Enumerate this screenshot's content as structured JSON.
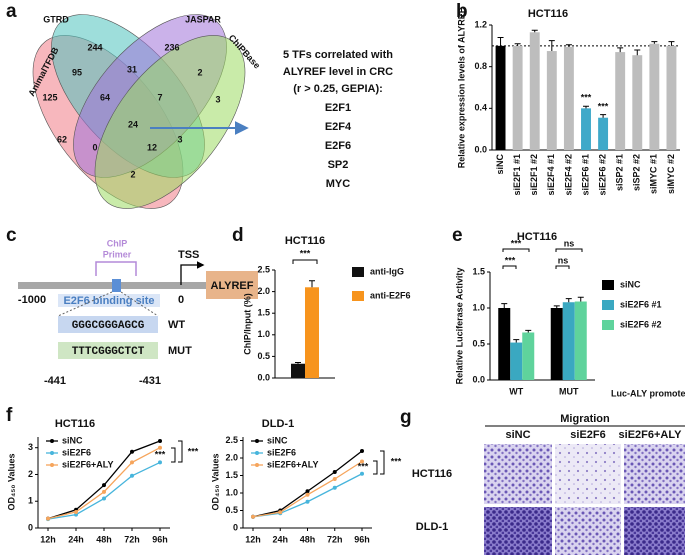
{
  "panel_labels": [
    "a",
    "b",
    "c",
    "d",
    "e",
    "f",
    "g"
  ],
  "venn": {
    "sets": [
      "AnimalTFDB",
      "GTRD",
      "JASPAR",
      "ChIPBase"
    ],
    "regions": [
      125,
      244,
      236,
      3,
      95,
      31,
      2,
      64,
      7,
      62,
      24,
      3,
      0,
      12,
      2
    ]
  },
  "tf_note": {
    "lines": [
      "5 TFs correlated with",
      "ALYREF level in CRC",
      "(r > 0.25, GEPIA):"
    ],
    "tfs": [
      "E2F1",
      "E2F4",
      "E2F6",
      "SP2",
      "MYC"
    ]
  },
  "promoter": {
    "primer": [
      "ChIP",
      "Primer"
    ],
    "tss": "TSS",
    "gene": "ALYREF",
    "start": "-1000",
    "zero": "0",
    "site": "E2F6 binding site",
    "wt_seq": "GGGCGGGAGCG",
    "wt": "WT",
    "mut_seq": "TTTCGGGCTCT",
    "mut": "MUT",
    "from": "-441",
    "to": "-431"
  },
  "chart_data": [
    {
      "type": "bar",
      "title": "HCT116",
      "ylabel": "Relative expression levels of ALYREF",
      "categories": [
        "siNC",
        "siE2F1 #1",
        "siE2F1 #2",
        "siE2F4 #1",
        "siE2F4 #2",
        "siE2F6 #1",
        "siE2F6 #2",
        "siSP2 #1",
        "siSP2 #2",
        "siMYC #1",
        "siMYC #2"
      ],
      "values": [
        1.0,
        1.0,
        1.13,
        0.95,
        0.99,
        0.4,
        0.31,
        0.94,
        0.91,
        1.02,
        1.0
      ],
      "errors": [
        0.08,
        0.02,
        0.02,
        0.1,
        0.02,
        0.02,
        0.03,
        0.04,
        0.05,
        0.02,
        0.04
      ],
      "colors": [
        "#000000",
        "#bdbdbd",
        "#bdbdbd",
        "#bdbdbd",
        "#bdbdbd",
        "#3fa9c9",
        "#3fa9c9",
        "#bdbdbd",
        "#bdbdbd",
        "#bdbdbd",
        "#bdbdbd"
      ],
      "ylim": [
        0,
        1.2
      ],
      "yticks": [
        {
          "value": 0,
          "label": "0.0"
        },
        0.4,
        0.8,
        1.2
      ],
      "reference_line": 1,
      "annotations": [
        "***",
        "***"
      ]
    },
    {
      "type": "bar",
      "title": "HCT116",
      "ylabel": "ChIP/Input (%)",
      "categories": [
        null
      ],
      "series": [
        {
          "name": "anti-IgG",
          "color": "#111111",
          "values": [
            0.33
          ],
          "errors": [
            0.03
          ]
        },
        {
          "name": "anti-E2F6",
          "color": "#f7941d",
          "values": [
            2.1
          ],
          "errors": [
            0.15
          ]
        }
      ],
      "ylim": [
        0,
        2.5
      ],
      "yticks": [
        {
          "value": 0,
          "label": "0.0"
        },
        0.5,
        {
          "value": 1,
          "label": "1.0"
        },
        1.5,
        {
          "value": 2,
          "label": "2.0"
        },
        2.5
      ],
      "legend": "right",
      "annotations": [
        "***"
      ]
    },
    {
      "type": "bar",
      "title": "HCT116",
      "ylabel": "Relative Luciferase Activity",
      "xlabel": "Luc-ALY promoter",
      "categories": [
        "WT",
        "MUT"
      ],
      "series": [
        {
          "name": "siNC",
          "color": "#000000",
          "values": [
            1.0,
            1.0
          ],
          "errors": [
            0.06,
            0.03
          ]
        },
        {
          "name": "siE2F6 #1",
          "color": "#3aa8c1",
          "values": [
            0.52,
            1.08
          ],
          "errors": [
            0.04,
            0.05
          ]
        },
        {
          "name": "siE2F6 #2",
          "color": "#5fd39c",
          "values": [
            0.66,
            1.09
          ],
          "errors": [
            0.03,
            0.06
          ]
        }
      ],
      "ylim": [
        0,
        1.5
      ],
      "yticks": [
        {
          "value": 0,
          "label": "0.0"
        },
        0.5,
        {
          "value": 1,
          "label": "1.0"
        },
        1.5
      ],
      "legend": "right",
      "annotations": [
        "***",
        "***",
        "ns",
        "ns"
      ]
    },
    {
      "type": "line",
      "title": "HCT116",
      "ylabel": "OD₄₅₀ Values",
      "categories": [
        "12h",
        "24h",
        "48h",
        "72h",
        "96h"
      ],
      "series": [
        {
          "name": "siNC",
          "color": "#000000",
          "values": [
            0.35,
            0.68,
            1.6,
            2.85,
            3.25
          ]
        },
        {
          "name": "siE2F6",
          "color": "#47b5dc",
          "values": [
            0.33,
            0.5,
            1.1,
            1.95,
            2.45
          ]
        },
        {
          "name": "siE2F6+ALY",
          "color": "#f6a55c",
          "values": [
            0.35,
            0.6,
            1.35,
            2.45,
            3.0
          ]
        }
      ],
      "ylim": [
        0,
        3.4
      ],
      "yticks": [
        0,
        1,
        2,
        3
      ],
      "legend": "upper left",
      "annotations": [
        "***",
        "***"
      ]
    },
    {
      "type": "line",
      "title": "DLD-1",
      "ylabel": "OD₄₅₀ Values",
      "categories": [
        "12h",
        "24h",
        "48h",
        "72h",
        "96h"
      ],
      "series": [
        {
          "name": "siNC",
          "color": "#000000",
          "values": [
            0.32,
            0.5,
            1.05,
            1.6,
            2.2
          ]
        },
        {
          "name": "siE2F6",
          "color": "#47b5dc",
          "values": [
            0.32,
            0.42,
            0.75,
            1.15,
            1.55
          ]
        },
        {
          "name": "siE2F6+ALY",
          "color": "#f6a55c",
          "values": [
            0.32,
            0.45,
            0.95,
            1.4,
            1.9
          ]
        }
      ],
      "ylim": [
        0,
        2.6
      ],
      "yticks": [
        0,
        0.5,
        {
          "value": 1,
          "label": "1.0"
        },
        1.5,
        {
          "value": 2,
          "label": "2.0"
        },
        2.5
      ],
      "legend": "upper left",
      "annotations": [
        "***",
        "***"
      ]
    }
  ],
  "migration": {
    "title": "Migration",
    "columns": [
      "siNC",
      "siE2F6",
      "siE2F6+ALY"
    ],
    "rows": [
      "HCT116",
      "DLD-1"
    ]
  }
}
